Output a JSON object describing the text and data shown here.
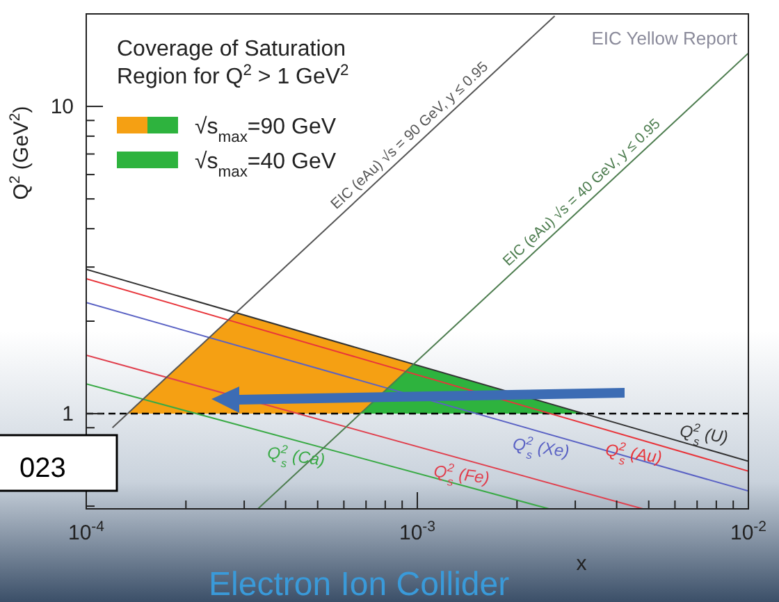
{
  "chart_data": {
    "type": "line",
    "legend_title": "Coverage of Saturation Region for Q$^{2}$ > 1 GeV$^{2}$",
    "xlabel": "x",
    "ylabel": "Q$^{2}$ (GeV$^{2}$)",
    "log": "xy",
    "xlim": [
      0.0001,
      0.01
    ],
    "ylim": [
      0.49,
      20
    ],
    "xticks": [
      {
        "value": 0.0001,
        "label": "10$^{-4}$"
      },
      {
        "value": 0.0002,
        "label": null
      },
      {
        "value": 0.0003,
        "label": null
      },
      {
        "value": 0.0004,
        "label": null
      },
      {
        "value": 0.0005,
        "label": null
      },
      {
        "value": 0.0006,
        "label": null
      },
      {
        "value": 0.0007,
        "label": null
      },
      {
        "value": 0.0008,
        "label": null
      },
      {
        "value": 0.0009,
        "label": null
      },
      {
        "value": 0.001,
        "label": "10$^{-3}$"
      },
      {
        "value": 0.002,
        "label": null
      },
      {
        "value": 0.003,
        "label": null
      },
      {
        "value": 0.004,
        "label": null
      },
      {
        "value": 0.005,
        "label": null
      },
      {
        "value": 0.006,
        "label": null
      },
      {
        "value": 0.007,
        "label": null
      },
      {
        "value": 0.008,
        "label": null
      },
      {
        "value": 0.009,
        "label": null
      },
      {
        "value": 0.01,
        "label": "10$^{-2}$"
      }
    ],
    "yticks": [
      {
        "value": 0.5,
        "label": null
      },
      {
        "value": 0.6,
        "label": null
      },
      {
        "value": 0.7,
        "label": null
      },
      {
        "value": 0.8,
        "label": null
      },
      {
        "value": 0.9,
        "label": null
      },
      1,
      {
        "value": 2,
        "label": null
      },
      {
        "value": 3,
        "label": null
      },
      {
        "value": 4,
        "label": null
      },
      {
        "value": 5,
        "label": null
      },
      {
        "value": 6,
        "label": null
      },
      {
        "value": 7,
        "label": null
      },
      {
        "value": 8,
        "label": null
      },
      {
        "value": 9,
        "label": null
      },
      10
    ],
    "legend": "top left",
    "series": [
      {
        "name": "√s$_{max}$=90 GeV",
        "type": "area",
        "color": "#f5a013",
        "x": [
          0.000133,
          0.000283,
          0.0032
        ],
        "values": [
          1,
          2.13,
          1
        ]
      },
      {
        "name": "√s$_{max}$=40 GeV",
        "type": "area",
        "color": "#2eb33e",
        "x": [
          0.00067,
          0.00097,
          0.0032
        ],
        "values": [
          1,
          1.45,
          1
        ]
      },
      {
        "name": "Q$^{2}$$_{s}$ (U)",
        "color": "#333333",
        "x": [
          0.0001,
          0.01
        ],
        "values": [
          2.95,
          0.7
        ]
      },
      {
        "name": "Q$^{2}$$_{s}$ (Au)",
        "color": "#e8353b",
        "x": [
          0.0001,
          0.01
        ],
        "values": [
          2.75,
          0.65
        ]
      },
      {
        "name": "Q$^{2}$$_{s}$ (Xe)",
        "color": "#5a62c4",
        "x": [
          0.0001,
          0.01
        ],
        "values": [
          2.3,
          0.56
        ]
      },
      {
        "name": "Q$^{2}$$_{s}$ (Fe)",
        "color": "#e0404e",
        "x": [
          0.0001,
          0.0048
        ],
        "values": [
          1.55,
          0.49
        ]
      },
      {
        "name": "Q$^{2}$$_{s}$ (Ca)",
        "color": "#3aaa46",
        "x": [
          0.0001,
          0.0025
        ],
        "values": [
          1.25,
          0.49
        ]
      },
      {
        "name": "EIC (eAu) √s = 90 GeV, y ≤ 0.95",
        "color": "#555555",
        "x": [
          0.00012,
          0.0026
        ],
        "values": [
          0.9,
          19.7
        ]
      },
      {
        "name": "EIC (eAu) √s = 40 GeV, y ≤ 0.95",
        "color": "#4d7d4f",
        "x": [
          0.00033,
          0.01
        ],
        "values": [
          0.49,
          14.9
        ]
      }
    ],
    "ref_lines": [
      {
        "axis": "y",
        "value": 1,
        "line_style": "dashed",
        "color": "#000000"
      }
    ],
    "annotations": [
      "EIC Yellow Report",
      "023",
      "Electron Ion Collider"
    ]
  }
}
